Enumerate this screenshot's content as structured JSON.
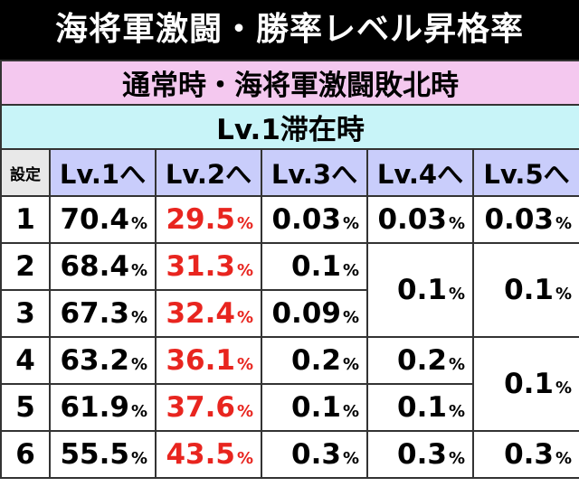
{
  "title": "海将軍激闘・勝率レベル昇格率",
  "subtitle": "通常時・海将軍激闘敗北時",
  "condition": "Lv.1滞在時",
  "columns": {
    "setting": "設定",
    "lv1": "Lv.1へ",
    "lv2": "Lv.2へ",
    "lv3": "Lv.3へ",
    "lv4": "Lv.4へ",
    "lv5": "Lv.5へ"
  },
  "percent_sign": "%",
  "rows": [
    {
      "setting": "1",
      "lv1": "70.4",
      "lv2": "29.5",
      "lv3": "0.03",
      "lv4": "0.03",
      "lv5": "0.03"
    },
    {
      "setting": "2",
      "lv1": "68.4",
      "lv2": "31.3",
      "lv3": "0.1"
    },
    {
      "setting": "3",
      "lv1": "67.3",
      "lv2": "32.4",
      "lv3": "0.09"
    },
    {
      "setting": "4",
      "lv1": "63.2",
      "lv2": "36.1",
      "lv3": "0.2",
      "lv4": "0.2"
    },
    {
      "setting": "5",
      "lv1": "61.9",
      "lv2": "37.6",
      "lv3": "0.1",
      "lv4": "0.1"
    },
    {
      "setting": "6",
      "lv1": "55.5",
      "lv2": "43.5",
      "lv3": "0.3",
      "lv4": "0.3",
      "lv5": "0.3"
    }
  ],
  "merged": {
    "lv4_settings_2_3": "0.1",
    "lv5_settings_2_3": "0.1",
    "lv5_settings_4_5": "0.1"
  },
  "colors": {
    "title_bg": "#000000",
    "subtitle_bg": "#f4c8ef",
    "condition_bg": "#c8f4f8",
    "header_bg": "#c9cdfb",
    "lv2_text": "#e8251f"
  }
}
